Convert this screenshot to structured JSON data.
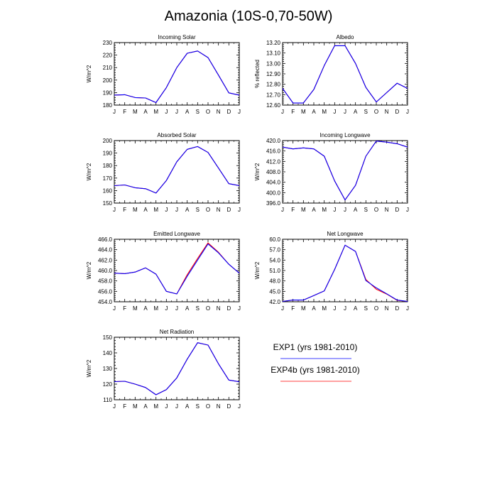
{
  "title": "Amazonia (10S-0,70-50W)",
  "colors": {
    "exp1": "#0000ff",
    "exp4b": "#ff0000",
    "axis": "#000000"
  },
  "legend": [
    {
      "label": "EXP1 (yrs 1981-2010)",
      "color": "#0000ff"
    },
    {
      "label": "EXP4b (yrs 1981-2010)",
      "color": "#ff0000"
    }
  ],
  "chart_data": [
    {
      "type": "line",
      "title": "Incoming Solar",
      "ylabel": "W/m^2",
      "categories": [
        "J",
        "F",
        "M",
        "A",
        "M",
        "J",
        "J",
        "A",
        "S",
        "O",
        "N",
        "D",
        "J"
      ],
      "ylim": [
        180,
        230
      ],
      "yticks": [
        180,
        190,
        200,
        210,
        220,
        230
      ],
      "ytick_labels": [
        "180",
        "190",
        "200",
        "210",
        "220",
        "230"
      ],
      "series": [
        {
          "name": "EXP1 (yrs 1981-2010)",
          "values": [
            188,
            188.3,
            186,
            185.7,
            182,
            194,
            210,
            221.5,
            223.3,
            218,
            204,
            189.8,
            188
          ]
        },
        {
          "name": "EXP4b (yrs 1981-2010)",
          "values": [
            188,
            188.3,
            186,
            185.7,
            182,
            194,
            210,
            221.5,
            223.3,
            218,
            204,
            189.8,
            188
          ]
        }
      ]
    },
    {
      "type": "line",
      "title": "Albedo",
      "ylabel": "% reflected",
      "categories": [
        "J",
        "F",
        "M",
        "A",
        "M",
        "J",
        "J",
        "A",
        "S",
        "O",
        "N",
        "D",
        "J"
      ],
      "ylim": [
        12.6,
        13.2
      ],
      "yticks": [
        12.6,
        12.7,
        12.8,
        12.9,
        13.0,
        13.1,
        13.2
      ],
      "ytick_labels": [
        "12.60",
        "12.70",
        "12.80",
        "12.90",
        "13.00",
        "13.10",
        "13.20"
      ],
      "series": [
        {
          "name": "EXP1 (yrs 1981-2010)",
          "values": [
            12.76,
            12.62,
            12.62,
            12.75,
            12.98,
            13.17,
            13.17,
            13.0,
            12.77,
            12.63,
            12.72,
            12.81,
            12.76
          ]
        },
        {
          "name": "EXP4b (yrs 1981-2010)",
          "values": [
            12.76,
            12.62,
            12.62,
            12.75,
            12.98,
            13.17,
            13.17,
            13.0,
            12.77,
            12.63,
            12.72,
            12.81,
            12.76
          ]
        }
      ]
    },
    {
      "type": "line",
      "title": "Absorbed Solar",
      "ylabel": "W/m^2",
      "categories": [
        "J",
        "F",
        "M",
        "A",
        "M",
        "J",
        "J",
        "A",
        "S",
        "O",
        "N",
        "D",
        "J"
      ],
      "ylim": [
        150,
        200
      ],
      "yticks": [
        150,
        160,
        170,
        180,
        190,
        200
      ],
      "ytick_labels": [
        "150",
        "160",
        "170",
        "180",
        "190",
        "200"
      ],
      "series": [
        {
          "name": "EXP1 (yrs 1981-2010)",
          "values": [
            163.9,
            164.5,
            162.3,
            161.5,
            158,
            168,
            183,
            193,
            195.2,
            190.5,
            178,
            165.5,
            164
          ]
        },
        {
          "name": "EXP4b (yrs 1981-2010)",
          "values": [
            163.9,
            164.5,
            162.3,
            161.5,
            158,
            168,
            183,
            193,
            195.2,
            190.5,
            178,
            165.5,
            164
          ]
        }
      ]
    },
    {
      "type": "line",
      "title": "Incoming Longwave",
      "ylabel": "W/m^2",
      "categories": [
        "J",
        "F",
        "M",
        "A",
        "M",
        "J",
        "J",
        "A",
        "S",
        "O",
        "N",
        "D",
        "J"
      ],
      "ylim": [
        396,
        420
      ],
      "yticks": [
        396,
        400,
        404,
        408,
        412,
        416,
        420
      ],
      "ytick_labels": [
        "396.0",
        "400.0",
        "404.0",
        "408.0",
        "412.0",
        "416.0",
        "420.0"
      ],
      "series": [
        {
          "name": "EXP1 (yrs 1981-2010)",
          "values": [
            417.5,
            416.8,
            417.2,
            416.8,
            414,
            404.5,
            397.2,
            402.8,
            414,
            419.8,
            419.4,
            418.8,
            417.5
          ]
        },
        {
          "name": "EXP4b (yrs 1981-2010)",
          "values": [
            417.5,
            416.8,
            417.2,
            416.8,
            414,
            404.5,
            397.2,
            402.8,
            414,
            419.8,
            419.4,
            418.8,
            417.5
          ]
        }
      ]
    },
    {
      "type": "line",
      "title": "Emitted Longwave",
      "ylabel": "W/m^2",
      "categories": [
        "J",
        "F",
        "M",
        "A",
        "M",
        "J",
        "J",
        "A",
        "S",
        "O",
        "N",
        "D",
        "J"
      ],
      "ylim": [
        454,
        466
      ],
      "yticks": [
        454,
        456,
        458,
        460,
        462,
        464,
        466
      ],
      "ytick_labels": [
        "454.0",
        "456.0",
        "458.0",
        "460.0",
        "462.0",
        "464.0",
        "466.0"
      ],
      "series": [
        {
          "name": "EXP1 (yrs 1981-2010)",
          "values": [
            459.5,
            459.4,
            459.7,
            460.5,
            459.3,
            456,
            455.5,
            458.9,
            462,
            465.1,
            463.4,
            461.2,
            459.5
          ]
        },
        {
          "name": "EXP4b (yrs 1981-2010)",
          "values": [
            459.5,
            459.4,
            459.7,
            460.5,
            459.3,
            456,
            455.5,
            459.2,
            462.3,
            465.3,
            463.5,
            461.2,
            459.5
          ]
        }
      ]
    },
    {
      "type": "line",
      "title": "Net Longwave",
      "ylabel": "W/m^2",
      "categories": [
        "J",
        "F",
        "M",
        "A",
        "M",
        "J",
        "J",
        "A",
        "S",
        "O",
        "N",
        "D",
        "J"
      ],
      "ylim": [
        42,
        60
      ],
      "yticks": [
        42,
        45,
        48,
        51,
        54,
        57,
        60
      ],
      "ytick_labels": [
        "42.0",
        "45.0",
        "48.0",
        "51.0",
        "54.0",
        "57.0",
        "60.0"
      ],
      "series": [
        {
          "name": "EXP1 (yrs 1981-2010)",
          "values": [
            42.1,
            42.5,
            42.5,
            43.8,
            45.1,
            51.3,
            58.3,
            56.5,
            48.1,
            46,
            44.3,
            42.5,
            42.1
          ]
        },
        {
          "name": "EXP4b (yrs 1981-2010)",
          "values": [
            42.1,
            42.5,
            42.5,
            43.8,
            45.1,
            51.3,
            58.3,
            56.5,
            48.4,
            45.6,
            44.2,
            42.4,
            42.1
          ]
        }
      ]
    },
    {
      "type": "line",
      "title": "Net Radiation",
      "ylabel": "W/m^2",
      "categories": [
        "J",
        "F",
        "M",
        "A",
        "M",
        "J",
        "J",
        "A",
        "S",
        "O",
        "N",
        "D",
        "J"
      ],
      "ylim": [
        110,
        150
      ],
      "yticks": [
        110,
        120,
        130,
        140,
        150
      ],
      "ytick_labels": [
        "110",
        "120",
        "130",
        "140",
        "150"
      ],
      "series": [
        {
          "name": "EXP1 (yrs 1981-2010)",
          "values": [
            121.6,
            121.8,
            120,
            117.8,
            113.2,
            116.5,
            124,
            136,
            146.5,
            145,
            133,
            122.6,
            121.5
          ]
        },
        {
          "name": "EXP4b (yrs 1981-2010)",
          "values": [
            121.6,
            121.8,
            120,
            117.8,
            113.2,
            116.5,
            124,
            136,
            146.5,
            145,
            133,
            122.6,
            121.5
          ]
        }
      ]
    }
  ]
}
